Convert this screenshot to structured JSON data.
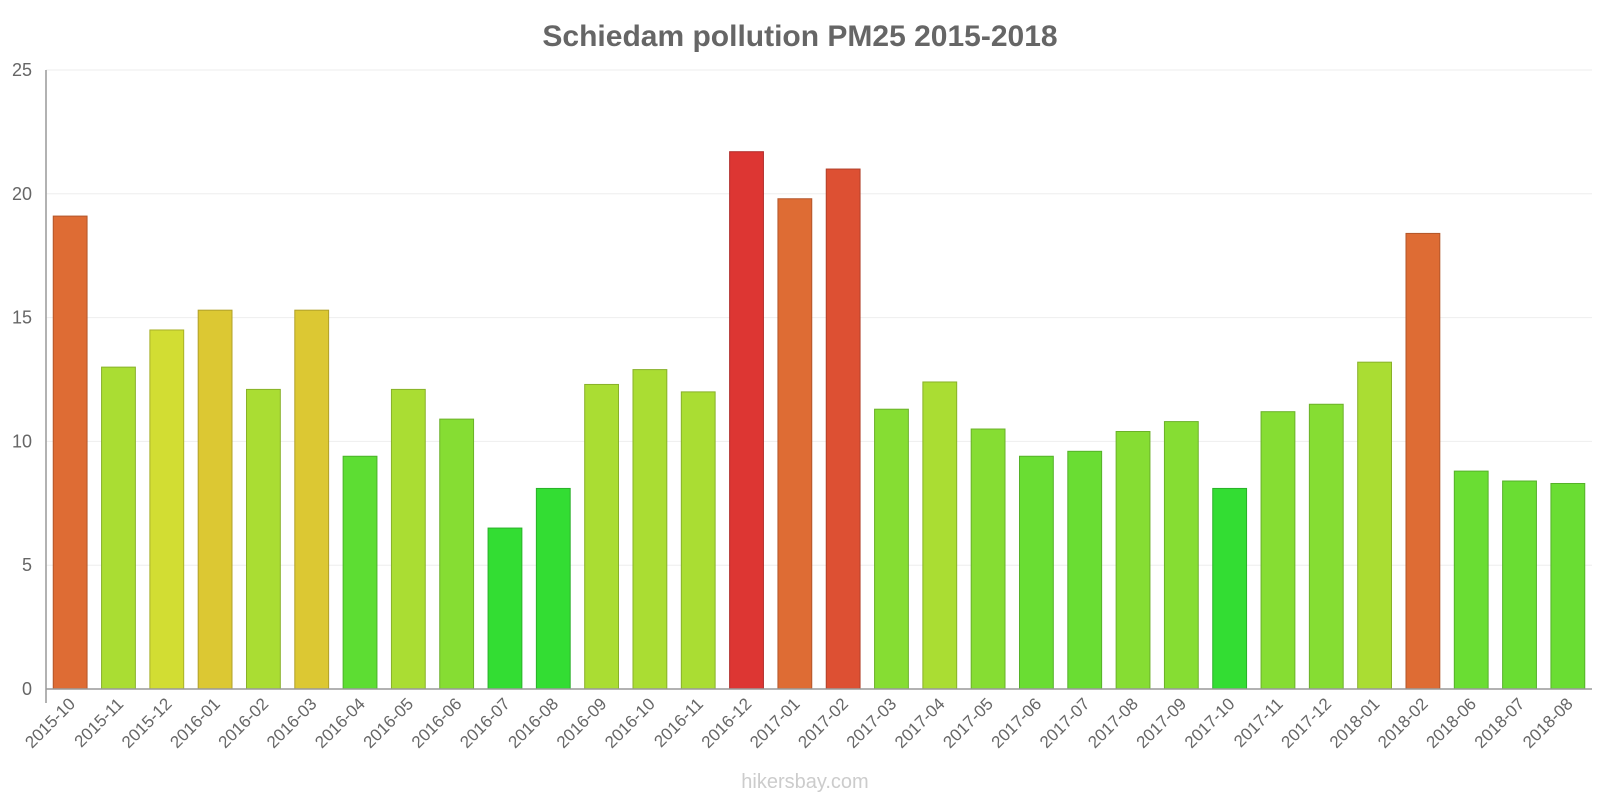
{
  "chart_data": {
    "type": "bar",
    "title": "Schiedam pollution PM25 2015-2018",
    "xlabel": "",
    "ylabel": "",
    "ylim": [
      0,
      25
    ],
    "yticks": [
      0,
      5,
      10,
      15,
      20,
      25
    ],
    "grid": true,
    "categories": [
      "2015-10",
      "2015-11",
      "2015-12",
      "2016-01",
      "2016-02",
      "2016-03",
      "2016-04",
      "2016-05",
      "2016-06",
      "2016-07",
      "2016-08",
      "2016-09",
      "2016-10",
      "2016-11",
      "2016-12",
      "2017-01",
      "2017-02",
      "2017-03",
      "2017-04",
      "2017-05",
      "2017-06",
      "2017-07",
      "2017-08",
      "2017-09",
      "2017-10",
      "2017-11",
      "2017-12",
      "2018-01",
      "2018-02",
      "2018-06",
      "2018-07",
      "2018-08"
    ],
    "values": [
      19.1,
      13.0,
      14.5,
      15.3,
      12.1,
      15.3,
      9.4,
      12.1,
      10.9,
      6.5,
      8.1,
      12.3,
      12.9,
      12.0,
      21.7,
      19.8,
      21.0,
      11.3,
      12.4,
      10.5,
      9.4,
      9.6,
      10.4,
      10.8,
      8.1,
      11.2,
      11.5,
      13.2,
      18.4,
      8.8,
      8.4,
      8.3
    ],
    "colors": [
      "#de6c34",
      "#aadd33",
      "#d2dd33",
      "#dcc833",
      "#aadd33",
      "#dcc833",
      "#5ddd33",
      "#aadd33",
      "#86dd33",
      "#33dd33",
      "#33dd33",
      "#aadd33",
      "#aadd33",
      "#aadd33",
      "#dd3633",
      "#de6c34",
      "#dd5033",
      "#86dd33",
      "#aadd33",
      "#86dd33",
      "#6add33",
      "#6add33",
      "#86dd33",
      "#86dd33",
      "#33dd33",
      "#86dd33",
      "#86dd33",
      "#aadd33",
      "#de6c34",
      "#6add33",
      "#6add33",
      "#6add33"
    ]
  },
  "watermark": "hikersbay.com"
}
